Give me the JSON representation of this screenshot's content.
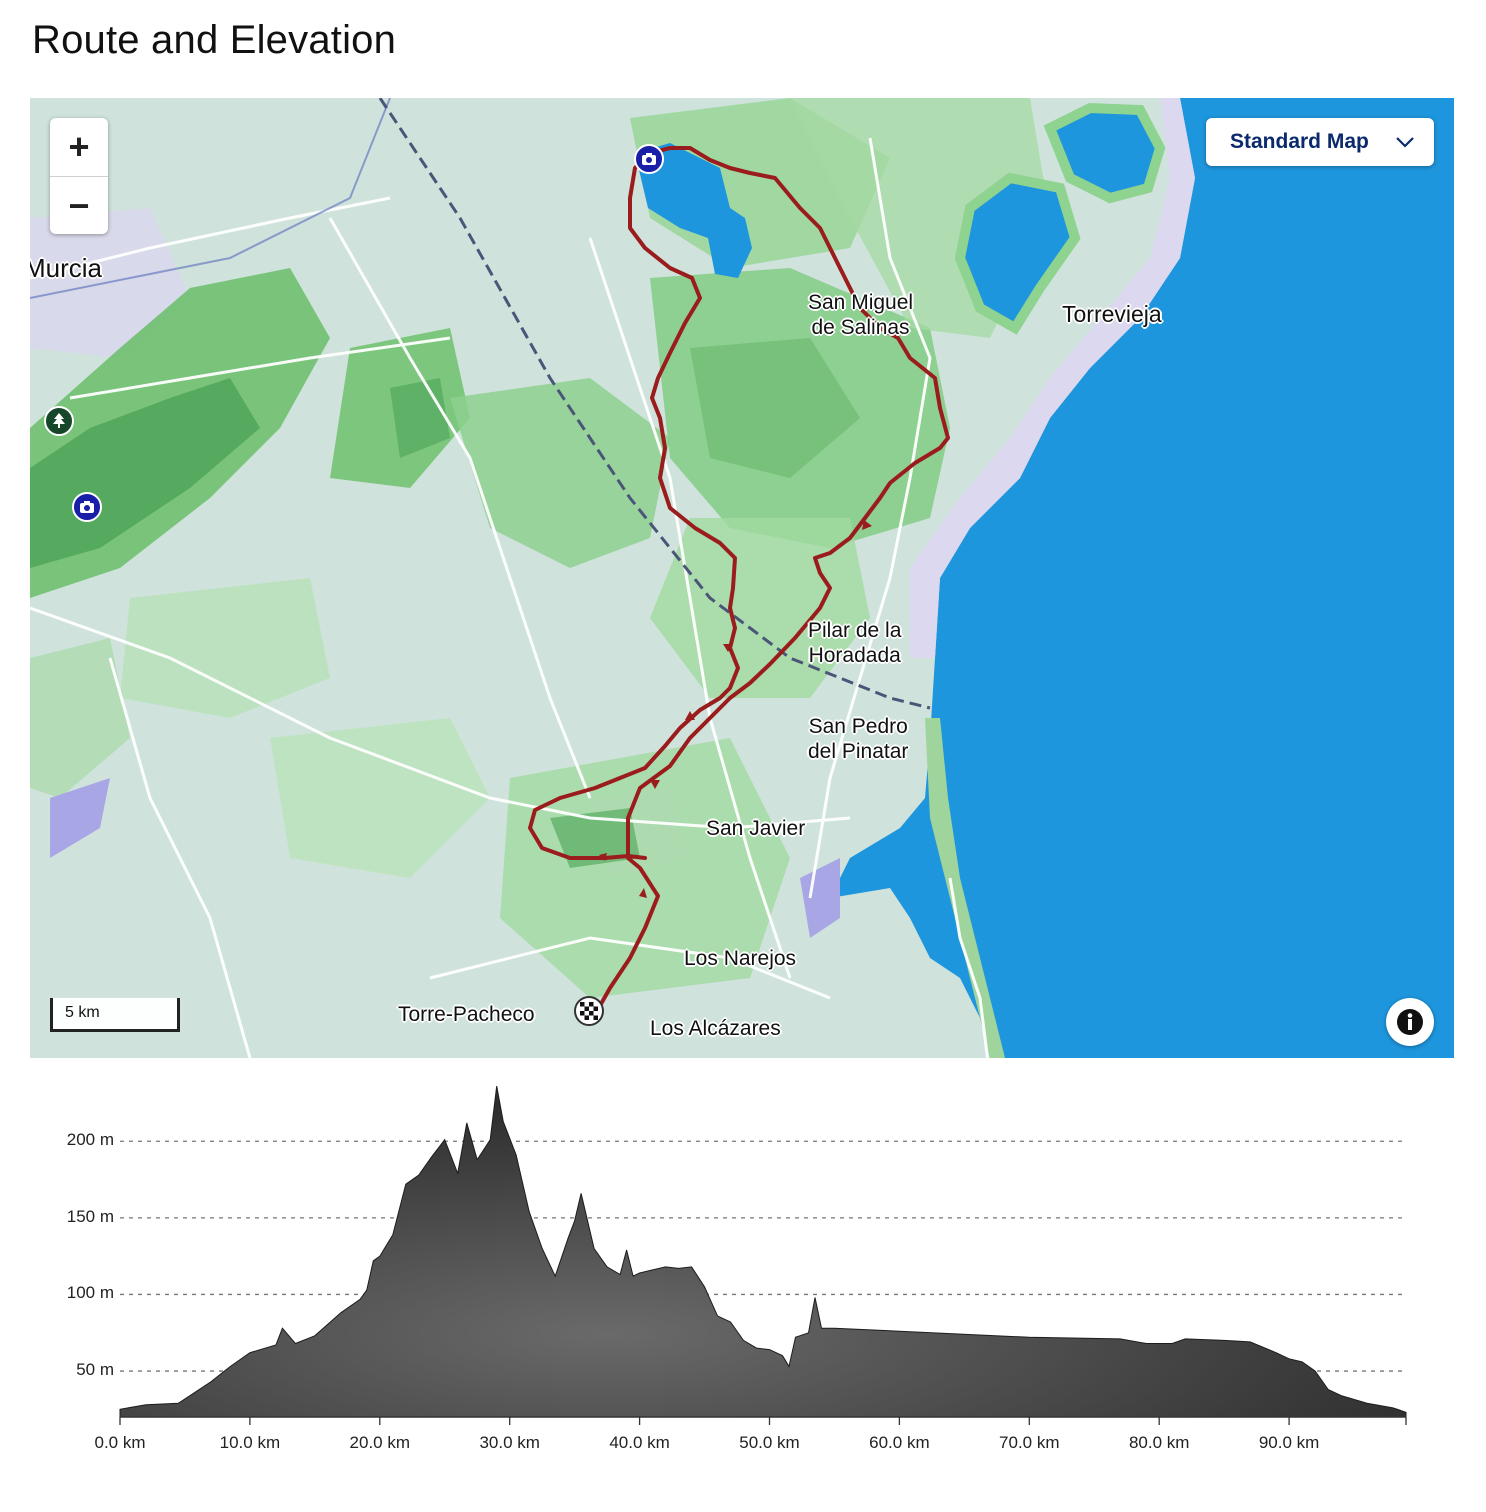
{
  "page": {
    "title": "Route and Elevation"
  },
  "map": {
    "map_type_label": "Standard Map",
    "zoom_in_label": "+",
    "zoom_out_label": "−",
    "scale_label": "5 km",
    "info_label": "i",
    "places": {
      "murcia": "Murcia",
      "san_miguel": "San Miguel\nde Salinas",
      "torrevieja": "Torrevieja",
      "pilar": "Pilar de la\nHoradada",
      "san_pedro": "San Pedro\ndel Pinatar",
      "san_javier": "San Javier",
      "los_narejos": "Los Narejos",
      "torre_pacheco": "Torre-Pacheco",
      "los_alcazares": "Los Alcázares"
    },
    "markers": {
      "photo_markers": [
        "camera-icon",
        "camera-icon"
      ],
      "park_marker": "tree-icon",
      "finish_marker": "checkered-flag-icon"
    },
    "colors": {
      "route": "#9b1c1c",
      "sea": "#1e96dd",
      "land": "#cfe3dc",
      "greenery": "#8fd390"
    }
  },
  "chart_data": {
    "type": "area",
    "title": "",
    "xlabel": "",
    "ylabel": "",
    "x_unit": "km",
    "y_unit": "m",
    "xlim": [
      0,
      99
    ],
    "ylim": [
      20,
      240
    ],
    "x_ticks": [
      "0.0 km",
      "10.0 km",
      "20.0 km",
      "30.0 km",
      "40.0 km",
      "50.0 km",
      "60.0 km",
      "70.0 km",
      "80.0 km",
      "90.0 km"
    ],
    "y_ticks": [
      "50 m",
      "100 m",
      "150 m",
      "200 m"
    ],
    "series": [
      {
        "x": [
          0,
          2,
          4.5,
          7,
          8.5,
          10,
          12,
          12.5,
          13.5,
          15,
          17,
          18.5,
          19,
          19.5,
          20,
          21,
          22,
          23,
          24,
          25,
          26,
          26.7,
          27.5,
          28.5,
          29,
          29.5,
          30.5,
          31.5,
          32.5,
          33.5,
          34.5,
          35,
          35.5,
          36.5,
          37.5,
          38.5,
          39,
          39.5,
          40,
          41,
          42,
          43,
          44,
          45,
          46,
          47,
          48,
          49,
          50,
          51,
          51.5,
          52,
          53,
          53.5,
          54,
          55,
          60,
          70,
          77,
          79,
          81,
          82,
          85,
          87,
          89,
          90,
          91,
          92,
          93,
          94,
          96,
          98,
          99
        ],
        "y": [
          25,
          28,
          29,
          43,
          53,
          62,
          67,
          78,
          68,
          73,
          88,
          97,
          103,
          122,
          125,
          139,
          172,
          178,
          190,
          201,
          179,
          212,
          188,
          201,
          236,
          213,
          191,
          154,
          130,
          112,
          137,
          148,
          166,
          130,
          118,
          113,
          129,
          112,
          114,
          116,
          118,
          117,
          118,
          105,
          86,
          82,
          70,
          65,
          64,
          60,
          53,
          72,
          75,
          98,
          78,
          78,
          76,
          72,
          71,
          68,
          68,
          71,
          70,
          69,
          62,
          58,
          56,
          50,
          38,
          34,
          29,
          26,
          23
        ]
      }
    ]
  }
}
